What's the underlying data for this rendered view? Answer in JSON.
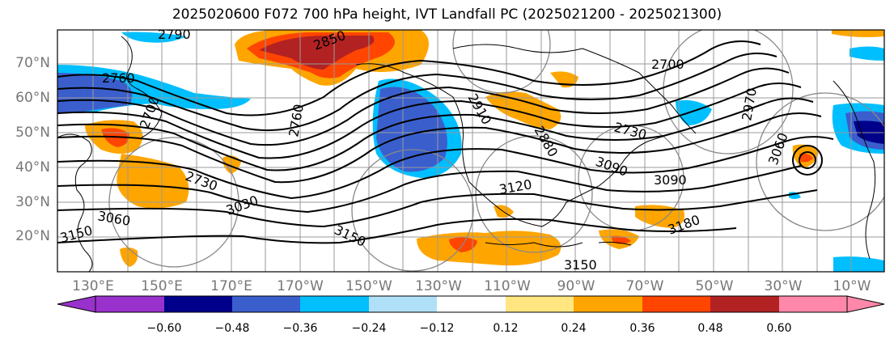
{
  "title": "2025020600 F072 700 hPa height, IVT Landfall PC (2025021200 - 2025021300)",
  "lat_labels": [
    "70°N",
    "60°N",
    "50°N",
    "40°N",
    "30°N",
    "20°N"
  ],
  "lon_labels": [
    "130°E",
    "150°E",
    "170°E",
    "170°W",
    "150°W",
    "130°W",
    "110°W",
    "90°W",
    "70°W",
    "50°W",
    "30°W",
    "10°W"
  ],
  "contour_labels": [
    "2790",
    "2850",
    "2760",
    "2700",
    "2730",
    "3060",
    "3150",
    "2760",
    "3030",
    "3150",
    "2910",
    "2880",
    "3120",
    "3150",
    "2700",
    "2730",
    "3090",
    "3180",
    "3060",
    "2970",
    "3090"
  ],
  "colorbar": {
    "ticks": [
      "−0.60",
      "−0.48",
      "−0.36",
      "−0.24",
      "−0.12",
      "0.12",
      "0.24",
      "0.36",
      "0.48",
      "0.60"
    ],
    "colors": [
      "#9932cc",
      "#00008b",
      "#3a5fcd",
      "#00bfff",
      "#b0e0f8",
      "#ffffff",
      "#ffe680",
      "#ffa500",
      "#ff4500",
      "#b22222",
      "#ff88aa"
    ]
  }
}
